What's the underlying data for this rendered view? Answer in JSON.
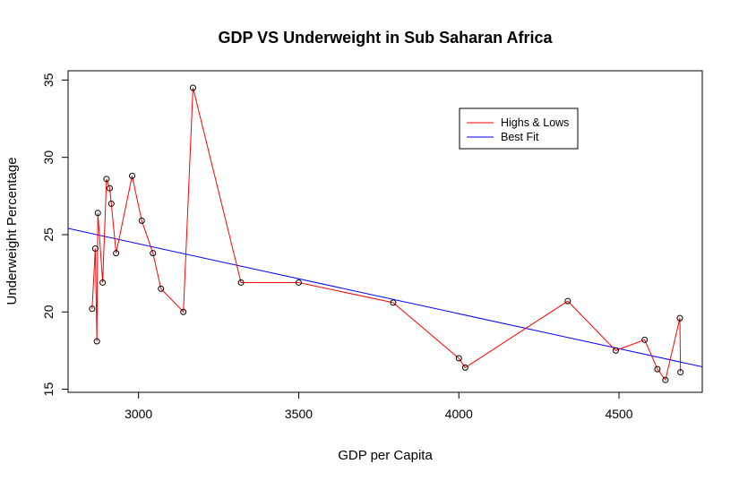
{
  "chart_data": {
    "type": "line",
    "title": "GDP VS Underweight in Sub Saharan Africa",
    "xlabel": "GDP per Capita",
    "ylabel": "Underweight Percentage",
    "xlim": [
      2780,
      4760
    ],
    "ylim": [
      14.8,
      35.6
    ],
    "x_ticks": [
      3000,
      3500,
      4000,
      4500
    ],
    "y_ticks": [
      15,
      20,
      25,
      30,
      35
    ],
    "x_tick_labels": [
      "3000",
      "3500",
      "4000",
      "4500"
    ],
    "y_tick_labels": [
      "15",
      "20",
      "25",
      "30",
      "35"
    ],
    "grid": false,
    "legend_position": "top-right",
    "series": [
      {
        "name": "Highs & Lows",
        "color": "#ff0000",
        "marker": "open-circle",
        "x": [
          2855,
          2865,
          2870,
          2873,
          2888,
          2900,
          2910,
          2915,
          2930,
          2980,
          3010,
          3045,
          3070,
          3140,
          3170,
          3320,
          3500,
          3795,
          4000,
          4020,
          4340,
          4490,
          4580,
          4620,
          4645,
          4690,
          4692
        ],
        "y": [
          20.2,
          24.1,
          18.1,
          26.4,
          21.9,
          28.6,
          28.0,
          27.0,
          23.8,
          28.8,
          25.9,
          23.8,
          21.5,
          20.0,
          34.5,
          21.9,
          21.9,
          20.6,
          17.0,
          16.4,
          20.7,
          17.5,
          18.2,
          16.3,
          15.6,
          19.6,
          16.1
        ]
      },
      {
        "name": "Best Fit",
        "color": "#0000ff",
        "x": [
          2780,
          4760
        ],
        "y": [
          25.4,
          16.45
        ]
      }
    ]
  }
}
